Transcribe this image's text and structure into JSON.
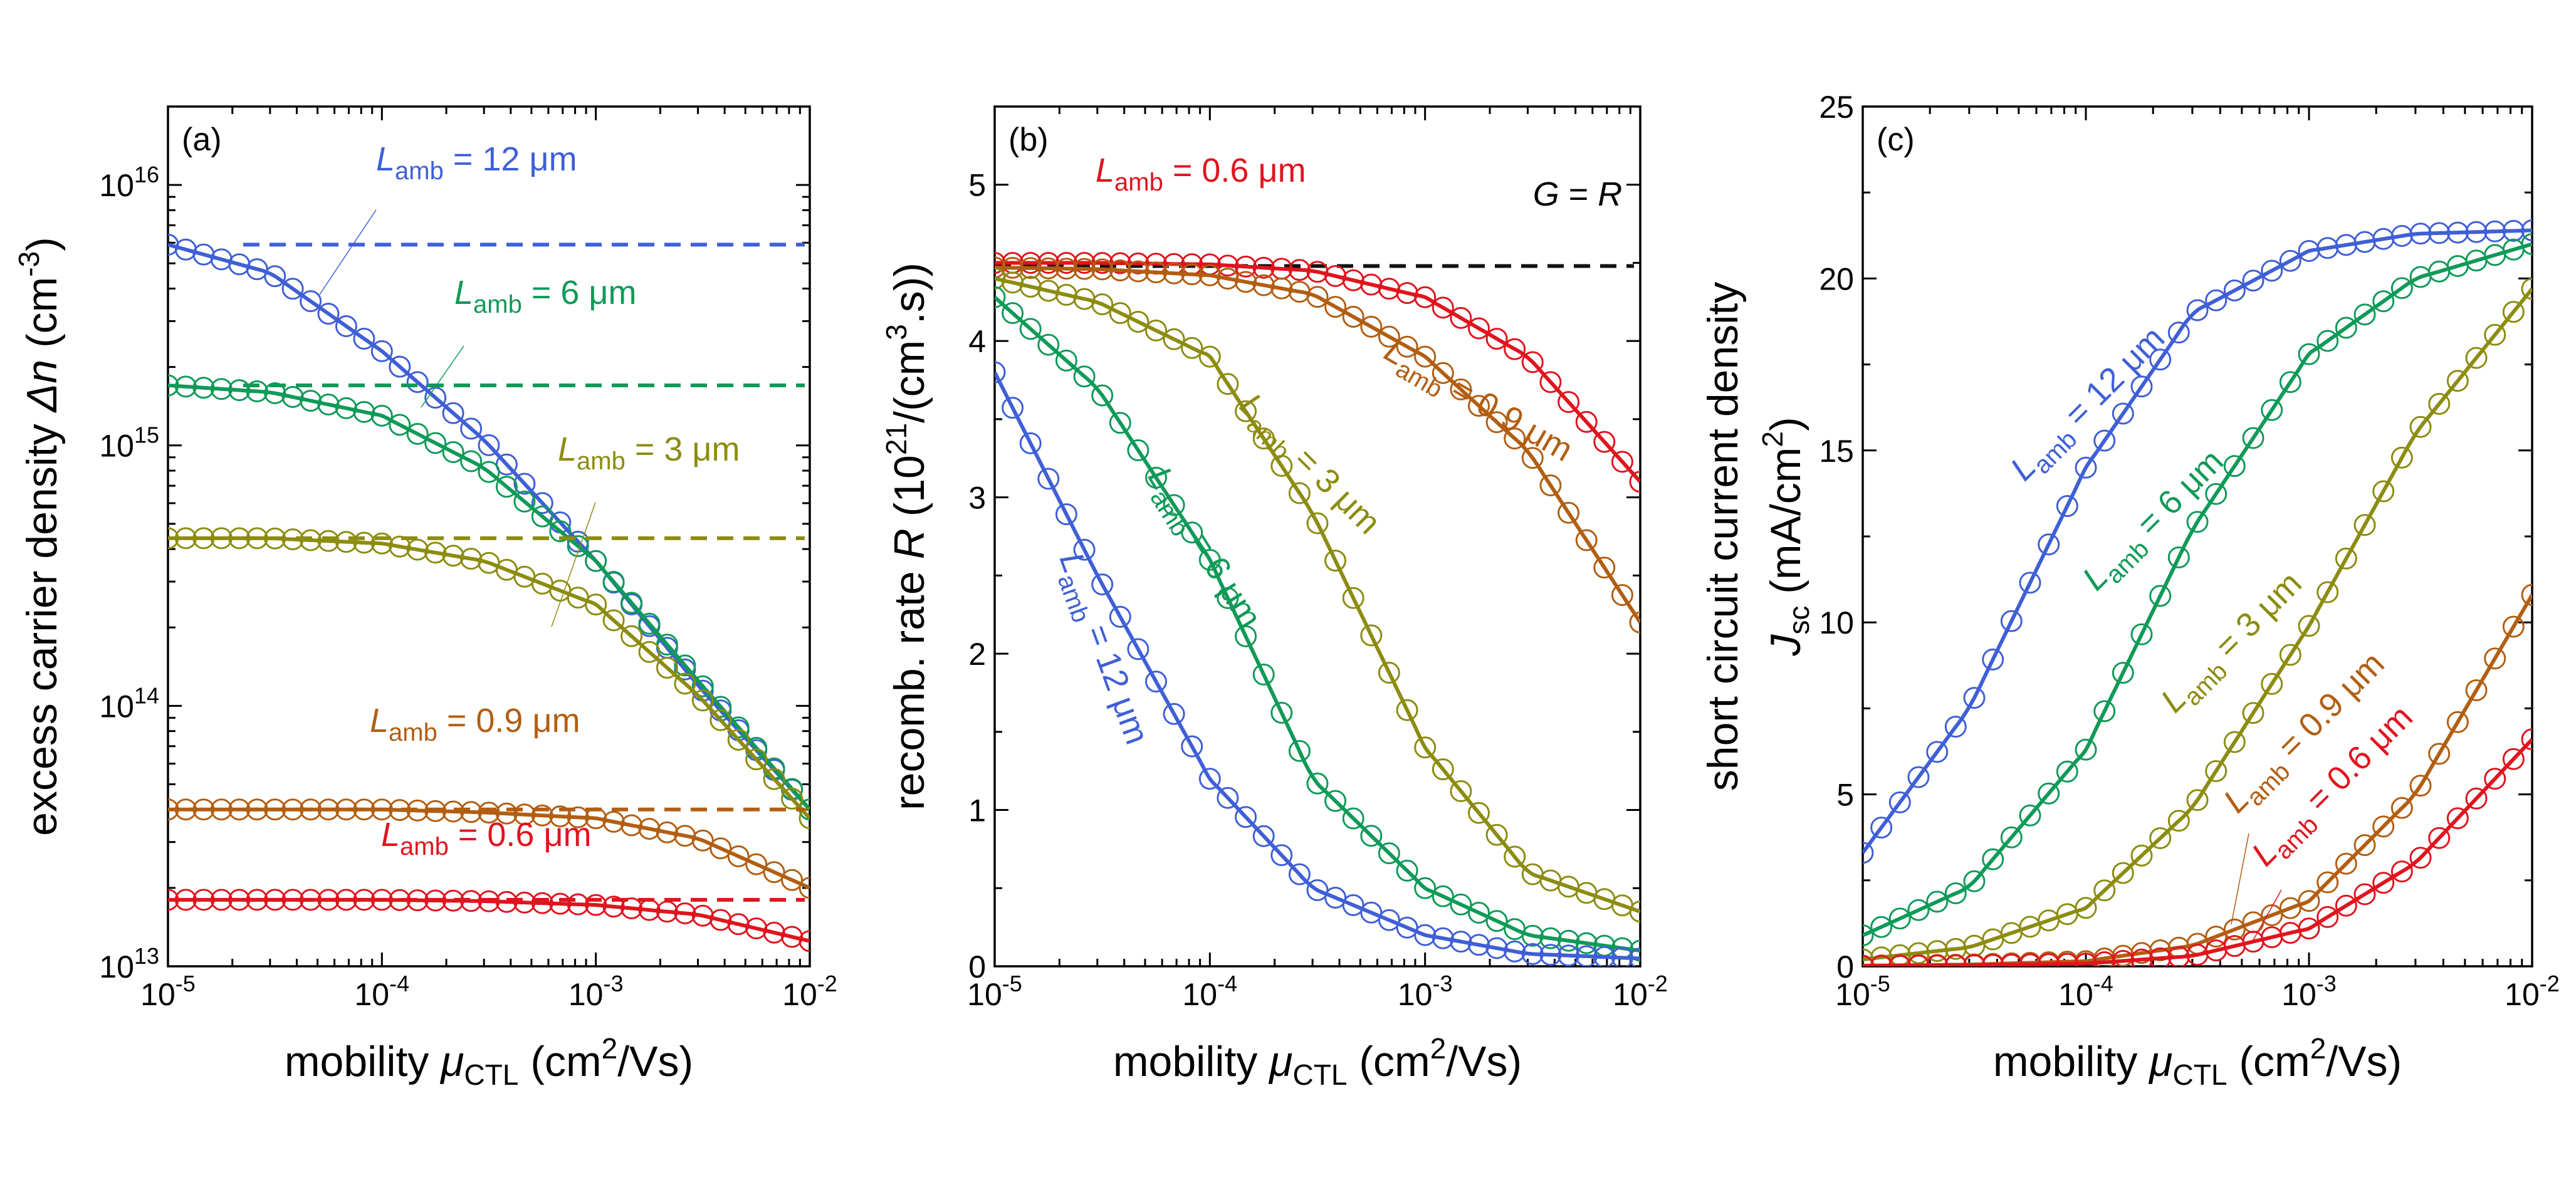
{
  "chart_data": [
    {
      "type": "line",
      "panel_label": "(a)",
      "xlabel": "mobility μCTL (cm2/Vs)",
      "xlabel_parts": {
        "pre": "mobility ",
        "sym": "μ",
        "sub": "CTL",
        "post": " (cm",
        "sup": "2",
        "end": "/Vs)"
      },
      "ylabel": "excess carrier density Δn (cm-3)",
      "ylabel_parts": {
        "pre": "excess carrier density ",
        "sym": "Δn",
        "post": " (cm",
        "sup": "-3",
        "end": ")"
      },
      "x_scale": "log",
      "y_scale": "log",
      "xlim": [
        1e-05,
        0.01
      ],
      "ylim": [
        10000000000000.0,
        2e+16
      ],
      "x_ticks": [
        {
          "v": 1e-05,
          "base": "10",
          "exp": "-5"
        },
        {
          "v": 0.0001,
          "base": "10",
          "exp": "-4"
        },
        {
          "v": 0.001,
          "base": "10",
          "exp": "-3"
        },
        {
          "v": 0.01,
          "base": "10",
          "exp": "-2"
        }
      ],
      "y_ticks": [
        {
          "v": 10000000000000.0,
          "base": "10",
          "exp": "13"
        },
        {
          "v": 100000000000000.0,
          "base": "10",
          "exp": "14"
        },
        {
          "v": 1000000000000000.0,
          "base": "10",
          "exp": "15"
        },
        {
          "v": 1e+16,
          "base": "10",
          "exp": "16"
        }
      ],
      "series": [
        {
          "name": "Lamb = 12 μm",
          "color": "#3f5fd6",
          "x": [
            1e-05,
            3e-05,
            0.0001,
            0.0003,
            0.001,
            0.003,
            0.01
          ],
          "y": [
            5900000000000000.0,
            4600000000000000.0,
            2300000000000000.0,
            1050000000000000.0,
            360000000000000.0,
            120000000000000.0,
            40000000000000.0
          ],
          "reference": 5900000000000000.0
        },
        {
          "name": "Lamb = 6 μm",
          "color": "#0f9a58",
          "x": [
            1e-05,
            3e-05,
            0.0001,
            0.0003,
            0.001,
            0.003,
            0.01
          ],
          "y": [
            1700000000000000.0,
            1600000000000000.0,
            1300000000000000.0,
            820000000000000.0,
            360000000000000.0,
            125000000000000.0,
            40000000000000.0
          ],
          "reference": 1700000000000000.0
        },
        {
          "name": "Lamb = 3 μm",
          "color": "#8c8c10",
          "x": [
            1e-05,
            3e-05,
            0.0001,
            0.0003,
            0.001,
            0.003,
            0.01
          ],
          "y": [
            440000000000000.0,
            440000000000000.0,
            420000000000000.0,
            360000000000000.0,
            245000000000000.0,
            110000000000000.0,
            37000000000000.0
          ],
          "reference": 440000000000000.0
        },
        {
          "name": "Lamb = 0.9 μm",
          "color": "#b25e12",
          "x": [
            1e-05,
            3e-05,
            0.0001,
            0.0003,
            0.001,
            0.003,
            0.01
          ],
          "y": [
            40000000000000.0,
            40000000000000.0,
            40000000000000.0,
            39000000000000.0,
            37000000000000.0,
            31000000000000.0,
            20000000000000.0
          ],
          "reference": 40000000000000.0
        },
        {
          "name": "Lamb = 0.6 μm",
          "color": "#e0141e",
          "x": [
            1e-05,
            3e-05,
            0.0001,
            0.0003,
            0.001,
            0.003,
            0.01
          ],
          "y": [
            18000000000000.0,
            18000000000000.0,
            18000000000000.0,
            17800000000000.0,
            17200000000000.0,
            15800000000000.0,
            12500000000000.0
          ],
          "reference": 18000000000000.0
        }
      ],
      "grid": false
    },
    {
      "type": "line",
      "panel_label": "(b)",
      "annotation": {
        "text": "G = R",
        "parts": {
          "a": "G",
          "eq": " = ",
          "b": "R"
        }
      },
      "xlabel": "mobility μCTL (cm2/Vs)",
      "xlabel_parts": {
        "pre": "mobility ",
        "sym": "μ",
        "sub": "CTL",
        "post": " (cm",
        "sup": "2",
        "end": "/Vs)"
      },
      "ylabel": "recomb. rate R (1021/(cm3.s))",
      "ylabel_parts": {
        "pre": "recomb. rate ",
        "sym": "R",
        "post": "  (10",
        "sup": "21",
        "mid": "/(cm",
        "sup2": "3",
        "end": ".s))"
      },
      "x_scale": "log",
      "y_scale": "linear",
      "xlim": [
        1e-05,
        0.01
      ],
      "ylim": [
        0,
        5.5
      ],
      "x_ticks": [
        {
          "v": 1e-05,
          "base": "10",
          "exp": "-5"
        },
        {
          "v": 0.0001,
          "base": "10",
          "exp": "-4"
        },
        {
          "v": 0.001,
          "base": "10",
          "exp": "-3"
        },
        {
          "v": 0.01,
          "base": "10",
          "exp": "-2"
        }
      ],
      "y_ticks": [
        {
          "v": 0,
          "label": "0"
        },
        {
          "v": 1,
          "label": "1"
        },
        {
          "v": 2,
          "label": "2"
        },
        {
          "v": 3,
          "label": "3"
        },
        {
          "v": 4,
          "label": "4"
        },
        {
          "v": 5,
          "label": "5"
        }
      ],
      "reference_value": 4.48,
      "series": [
        {
          "name": "Lamb = 0.6 μm",
          "color": "#e0141e",
          "x": [
            1e-05,
            3e-05,
            0.0001,
            0.0003,
            0.001,
            0.003,
            0.01
          ],
          "y": [
            4.5,
            4.5,
            4.49,
            4.45,
            4.28,
            3.9,
            3.1
          ]
        },
        {
          "name": "Lamb = 0.9 μm",
          "color": "#b25e12",
          "x": [
            1e-05,
            3e-05,
            0.0001,
            0.0003,
            0.001,
            0.003,
            0.01
          ],
          "y": [
            4.47,
            4.46,
            4.42,
            4.3,
            3.9,
            3.3,
            2.2
          ]
        },
        {
          "name": "Lamb = 3 μm",
          "color": "#8c8c10",
          "x": [
            1e-05,
            3e-05,
            0.0001,
            0.0003,
            0.001,
            0.003,
            0.01
          ],
          "y": [
            4.4,
            4.25,
            3.9,
            2.9,
            1.4,
            0.6,
            0.35
          ]
        },
        {
          "name": "Lamb = 6 μm",
          "color": "#0f9a58",
          "x": [
            1e-05,
            3e-05,
            0.0001,
            0.0003,
            0.001,
            0.003,
            0.01
          ],
          "y": [
            4.28,
            3.7,
            2.6,
            1.2,
            0.5,
            0.2,
            0.1
          ]
        },
        {
          "name": "Lamb = 12 μm",
          "color": "#3f5fd6",
          "x": [
            1e-05,
            3e-05,
            0.0001,
            0.0003,
            0.001,
            0.003,
            0.01
          ],
          "y": [
            3.8,
            2.5,
            1.2,
            0.5,
            0.2,
            0.08,
            0.05
          ]
        }
      ],
      "grid": false
    },
    {
      "type": "line",
      "panel_label": "(c)",
      "xlabel": "mobility μCTL (cm2/Vs)",
      "xlabel_parts": {
        "pre": "mobility ",
        "sym": "μ",
        "sub": "CTL",
        "post": " (cm",
        "sup": "2",
        "end": "/Vs)"
      },
      "ylabel": "short circuit current density Jsc (mA/cm2)",
      "ylabel_line1": "short circuit current density",
      "ylabel_parts": {
        "sym": "J",
        "sub": "sc",
        "post": " (mA/cm",
        "sup": "2",
        "end": ")"
      },
      "x_scale": "log",
      "y_scale": "linear",
      "xlim": [
        1e-05,
        0.01
      ],
      "ylim": [
        0,
        25
      ],
      "x_ticks": [
        {
          "v": 1e-05,
          "base": "10",
          "exp": "-5"
        },
        {
          "v": 0.0001,
          "base": "10",
          "exp": "-4"
        },
        {
          "v": 0.001,
          "base": "10",
          "exp": "-3"
        },
        {
          "v": 0.01,
          "base": "10",
          "exp": "-2"
        }
      ],
      "y_ticks": [
        {
          "v": 0,
          "label": "0"
        },
        {
          "v": 5,
          "label": "5"
        },
        {
          "v": 10,
          "label": "10"
        },
        {
          "v": 15,
          "label": "15"
        },
        {
          "v": 20,
          "label": "20"
        },
        {
          "v": 25,
          "label": "25"
        }
      ],
      "series": [
        {
          "name": "Lamb = 12 μm",
          "color": "#3f5fd6",
          "x": [
            1e-05,
            3e-05,
            0.0001,
            0.0003,
            0.001,
            0.003,
            0.01
          ],
          "y": [
            3.3,
            7.5,
            14.5,
            19.0,
            20.8,
            21.3,
            21.4
          ]
        },
        {
          "name": "Lamb = 6 μm",
          "color": "#0f9a58",
          "x": [
            1e-05,
            3e-05,
            0.0001,
            0.0003,
            0.001,
            0.003,
            0.01
          ],
          "y": [
            0.9,
            2.3,
            6.3,
            12.7,
            17.8,
            20.0,
            21.0
          ]
        },
        {
          "name": "Lamb = 3 μm",
          "color": "#8c8c10",
          "x": [
            1e-05,
            3e-05,
            0.0001,
            0.0003,
            0.001,
            0.003,
            0.01
          ],
          "y": [
            0.2,
            0.55,
            1.7,
            4.6,
            9.9,
            15.5,
            19.7
          ]
        },
        {
          "name": "Lamb = 0.9 μm",
          "color": "#b25e12",
          "x": [
            1e-05,
            3e-05,
            0.0001,
            0.0003,
            0.001,
            0.003,
            0.01
          ],
          "y": [
            0.02,
            0.05,
            0.15,
            0.6,
            1.9,
            5.0,
            10.8
          ]
        },
        {
          "name": "Lamb = 0.6 μm",
          "color": "#e0141e",
          "x": [
            1e-05,
            3e-05,
            0.0001,
            0.0003,
            0.001,
            0.003,
            0.01
          ],
          "y": [
            0.01,
            0.03,
            0.08,
            0.3,
            1.1,
            3.0,
            6.6
          ]
        }
      ],
      "grid": false
    }
  ]
}
